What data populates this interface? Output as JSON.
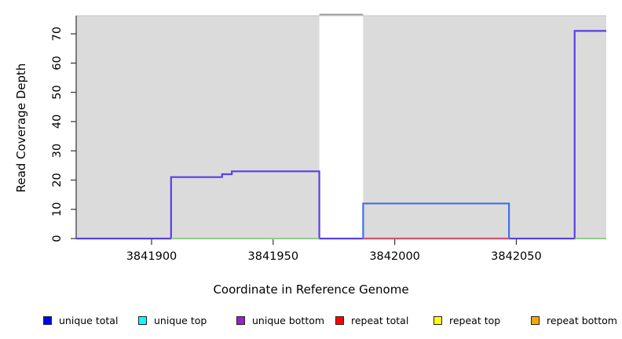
{
  "chart_data": {
    "type": "line",
    "subtype": "step-coverage",
    "title": "",
    "xlabel": "Coordinate in Reference Genome",
    "ylabel": "Read Coverage Depth",
    "xlim": [
      3841869,
      3842087
    ],
    "ylim": [
      0,
      76
    ],
    "xticks": [
      3841900,
      3841950,
      3842000,
      3842050
    ],
    "yticks": [
      0,
      10,
      20,
      30,
      40,
      50,
      60,
      70
    ],
    "grid": false,
    "plot_background": "#ffffff",
    "background_regions": [
      {
        "name": "unique-region-left",
        "x0": 3841869,
        "x1": 3841969,
        "color": "#dbdbdb"
      },
      {
        "name": "unique-region-right",
        "x0": 3841987,
        "x1": 3842087,
        "color": "#dbdbdb"
      }
    ],
    "gap_region": {
      "name": "repeat-gap",
      "x0": 3841969,
      "x1": 3841987,
      "color": "#ffffff"
    },
    "clipped_segment": {
      "x0": 3841969,
      "x1": 3841987,
      "note": "off-scale coverage clipped at plot top",
      "color": "#999999"
    },
    "series": [
      {
        "name": "unique bottom coverage",
        "color": "#5a3fe6",
        "width": 2.2,
        "segments": [
          [
            [
              3841869,
              0
            ],
            [
              3841908,
              0
            ],
            [
              3841908,
              21
            ],
            [
              3841929,
              21
            ],
            [
              3841929,
              22
            ],
            [
              3841933,
              22
            ],
            [
              3841933,
              23
            ],
            [
              3841969,
              23
            ],
            [
              3841969,
              0
            ],
            [
              3842074,
              0
            ],
            [
              3842074,
              71
            ],
            [
              3842087,
              71
            ]
          ]
        ]
      },
      {
        "name": "unique total coverage",
        "color": "#4273e3",
        "width": 2.2,
        "segments": [
          [
            [
              3841987,
              0
            ],
            [
              3841987,
              12
            ],
            [
              3842047,
              12
            ],
            [
              3842047,
              0
            ]
          ]
        ]
      },
      {
        "name": "repeat total baseline",
        "color": "#e25965",
        "width": 1.8,
        "segments": [
          [
            [
              3841987,
              0
            ],
            [
              3842047,
              0
            ]
          ]
        ]
      },
      {
        "name": "green baseline",
        "color": "#85c785",
        "width": 1.8,
        "segments": [
          [
            [
              3841908,
              0
            ],
            [
              3841969,
              0
            ]
          ],
          [
            [
              3842074,
              0
            ],
            [
              3842087,
              0
            ]
          ]
        ]
      }
    ],
    "legend_position": "bottom"
  },
  "legend": {
    "items": [
      {
        "label": "unique total",
        "color": "#0000ff"
      },
      {
        "label": "unique top",
        "color": "#00ffff"
      },
      {
        "label": "unique bottom",
        "color": "#9a1fd1"
      },
      {
        "label": "repeat total",
        "color": "#ff0000"
      },
      {
        "label": "repeat top",
        "color": "#ffff00"
      },
      {
        "label": "repeat bottom",
        "color": "#ffa500"
      }
    ]
  },
  "axis": {
    "tick_color": "#333333",
    "label_color": "#000000"
  }
}
